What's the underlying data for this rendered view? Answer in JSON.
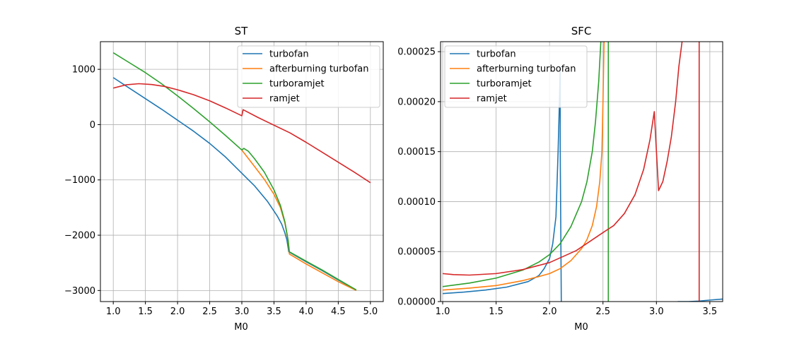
{
  "chart_data": [
    {
      "type": "line",
      "title": "ST",
      "xlabel": "M0",
      "ylabel": "",
      "xlim": [
        0.8,
        5.2
      ],
      "ylim": [
        -3200,
        1500
      ],
      "xticks": [
        1.0,
        1.5,
        2.0,
        2.5,
        3.0,
        3.5,
        4.0,
        4.5,
        5.0
      ],
      "xtick_labels": [
        "1.0",
        "1.5",
        "2.0",
        "2.5",
        "3.0",
        "3.5",
        "4.0",
        "4.5",
        "5.0"
      ],
      "yticks": [
        1000,
        0,
        -1000,
        -2000,
        -3000
      ],
      "ytick_labels": [
        "1000",
        "0",
        "−1000",
        "−2000",
        "−3000"
      ],
      "grid": true,
      "legend_position": "top-right",
      "series": [
        {
          "name": "turbofan",
          "color": "#1f77b4",
          "points": [
            [
              1.0,
              850
            ],
            [
              1.25,
              660
            ],
            [
              1.5,
              470
            ],
            [
              1.75,
              280
            ],
            [
              2.0,
              80
            ],
            [
              2.25,
              -120
            ],
            [
              2.5,
              -340
            ],
            [
              2.75,
              -590
            ],
            [
              3.0,
              -880
            ],
            [
              3.2,
              -1110
            ],
            [
              3.4,
              -1390
            ],
            [
              3.55,
              -1650
            ],
            [
              3.62,
              -1800
            ],
            [
              3.67,
              -1960
            ],
            [
              3.7,
              -2080
            ],
            [
              3.73,
              -2300
            ],
            [
              4.0,
              -2480
            ],
            [
              4.25,
              -2640
            ],
            [
              4.5,
              -2810
            ],
            [
              4.78,
              -2990
            ]
          ]
        },
        {
          "name": "afterburning turbofan",
          "color": "#ff7f0e",
          "points": [
            [
              3.0,
              -460
            ],
            [
              3.2,
              -760
            ],
            [
              3.35,
              -990
            ],
            [
              3.5,
              -1260
            ],
            [
              3.6,
              -1500
            ],
            [
              3.67,
              -1780
            ],
            [
              3.72,
              -2100
            ],
            [
              3.74,
              -2340
            ],
            [
              4.0,
              -2520
            ],
            [
              4.25,
              -2680
            ],
            [
              4.5,
              -2840
            ],
            [
              4.78,
              -3000
            ]
          ]
        },
        {
          "name": "turboramjet",
          "color": "#2ca02c",
          "points": [
            [
              1.0,
              1300
            ],
            [
              1.25,
              1120
            ],
            [
              1.5,
              940
            ],
            [
              1.75,
              740
            ],
            [
              2.0,
              520
            ],
            [
              2.25,
              290
            ],
            [
              2.5,
              50
            ],
            [
              2.75,
              -200
            ],
            [
              3.0,
              -460
            ],
            [
              3.03,
              -430
            ],
            [
              3.1,
              -480
            ],
            [
              3.2,
              -620
            ],
            [
              3.35,
              -860
            ],
            [
              3.5,
              -1180
            ],
            [
              3.6,
              -1460
            ],
            [
              3.67,
              -1760
            ],
            [
              3.72,
              -2090
            ],
            [
              3.74,
              -2300
            ],
            [
              4.0,
              -2470
            ],
            [
              4.25,
              -2630
            ],
            [
              4.5,
              -2800
            ],
            [
              4.78,
              -2990
            ]
          ]
        },
        {
          "name": "ramjet",
          "color": "#d62728",
          "points": [
            [
              1.0,
              660
            ],
            [
              1.2,
              720
            ],
            [
              1.4,
              740
            ],
            [
              1.6,
              725
            ],
            [
              1.8,
              690
            ],
            [
              2.0,
              630
            ],
            [
              2.25,
              540
            ],
            [
              2.5,
              430
            ],
            [
              2.75,
              300
            ],
            [
              3.0,
              160
            ],
            [
              3.02,
              270
            ],
            [
              3.25,
              130
            ],
            [
              3.5,
              -10
            ],
            [
              3.75,
              -150
            ],
            [
              4.0,
              -320
            ],
            [
              4.25,
              -500
            ],
            [
              4.5,
              -680
            ],
            [
              4.75,
              -860
            ],
            [
              5.0,
              -1050
            ]
          ]
        }
      ]
    },
    {
      "type": "line",
      "title": "SFC",
      "xlabel": "M0",
      "ylabel": "",
      "xlim": [
        0.98,
        3.62
      ],
      "ylim": [
        0,
        0.00026
      ],
      "xticks": [
        1.0,
        1.5,
        2.0,
        2.5,
        3.0,
        3.5
      ],
      "xtick_labels": [
        "1.0",
        "1.5",
        "2.0",
        "2.5",
        "3.0",
        "3.5"
      ],
      "yticks": [
        0,
        5e-05,
        0.0001,
        0.00015,
        0.0002,
        0.00025
      ],
      "ytick_labels": [
        "0.00000",
        "0.00005",
        "0.00010",
        "0.00015",
        "0.00020",
        "0.00025"
      ],
      "grid": true,
      "legend_position": "top-left",
      "series": [
        {
          "name": "turbofan",
          "color": "#1f77b4",
          "segments": [
            [
              [
                1.0,
                8e-06
              ],
              [
                1.2,
                9.5e-06
              ],
              [
                1.4,
                1.15e-05
              ],
              [
                1.6,
                1.45e-05
              ],
              [
                1.8,
                2e-05
              ],
              [
                1.9,
                2.6e-05
              ],
              [
                1.95,
                3.3e-05
              ],
              [
                2.0,
                4.3e-05
              ],
              [
                2.03,
                5.8e-05
              ],
              [
                2.06,
                8.5e-05
              ],
              [
                2.08,
                0.00015
              ],
              [
                2.09,
                0.00019
              ],
              [
                2.1,
                0.000235
              ],
              [
                2.1,
                0.00015
              ],
              [
                2.11,
                0.0
              ]
            ],
            [
              [
                3.2,
                0.0
              ],
              [
                3.3,
                0.0
              ],
              [
                3.4,
                5e-07
              ],
              [
                3.5,
                1.5e-06
              ],
              [
                3.62,
                2.5e-06
              ]
            ]
          ]
        },
        {
          "name": "afterburning turbofan",
          "color": "#ff7f0e",
          "segments": [
            [
              [
                1.0,
                1.15e-05
              ],
              [
                1.25,
                1.35e-05
              ],
              [
                1.5,
                1.6e-05
              ],
              [
                1.75,
                2.1e-05
              ],
              [
                1.9,
                2.5e-05
              ],
              [
                2.0,
                2.8e-05
              ],
              [
                2.1,
                3.3e-05
              ],
              [
                2.2,
                4.1e-05
              ],
              [
                2.3,
                5.3e-05
              ],
              [
                2.35,
                6.2e-05
              ],
              [
                2.4,
                7.6e-05
              ],
              [
                2.44,
                9.5e-05
              ],
              [
                2.47,
                0.00012
              ],
              [
                2.49,
                0.00015
              ],
              [
                2.5,
                0.0002
              ],
              [
                2.51,
                0.00026
              ]
            ]
          ]
        },
        {
          "name": "turboramjet",
          "color": "#2ca02c",
          "segments": [
            [
              [
                1.0,
                1.5e-05
              ],
              [
                1.25,
                1.85e-05
              ],
              [
                1.5,
                2.35e-05
              ],
              [
                1.75,
                3.15e-05
              ],
              [
                1.9,
                3.95e-05
              ],
              [
                2.0,
                4.7e-05
              ],
              [
                2.1,
                5.8e-05
              ],
              [
                2.2,
                7.5e-05
              ],
              [
                2.3,
                0.0001
              ],
              [
                2.35,
                0.00012
              ],
              [
                2.4,
                0.00015
              ],
              [
                2.43,
                0.00018
              ],
              [
                2.46,
                0.00022
              ],
              [
                2.48,
                0.00026
              ]
            ],
            [
              [
                2.55,
                0.00026
              ],
              [
                2.55,
                0.0
              ]
            ]
          ]
        },
        {
          "name": "ramjet",
          "color": "#d62728",
          "segments": [
            [
              [
                1.0,
                2.8e-05
              ],
              [
                1.1,
                2.7e-05
              ],
              [
                1.25,
                2.65e-05
              ],
              [
                1.5,
                2.8e-05
              ],
              [
                1.75,
                3.2e-05
              ],
              [
                2.0,
                3.9e-05
              ],
              [
                2.25,
                5.1e-05
              ],
              [
                2.5,
                6.9e-05
              ],
              [
                2.6,
                7.6e-05
              ],
              [
                2.7,
                8.8e-05
              ],
              [
                2.8,
                0.000107
              ],
              [
                2.88,
                0.000132
              ],
              [
                2.94,
                0.000162
              ],
              [
                2.98,
                0.00019
              ],
              [
                3.02,
                0.000111
              ],
              [
                3.06,
                0.00012
              ],
              [
                3.1,
                0.00014
              ],
              [
                3.14,
                0.000165
              ],
              [
                3.18,
                0.0002
              ],
              [
                3.21,
                0.000235
              ],
              [
                3.24,
                0.00026
              ]
            ],
            [
              [
                3.4,
                0.00026
              ],
              [
                3.4,
                0.0
              ]
            ]
          ]
        }
      ]
    }
  ]
}
